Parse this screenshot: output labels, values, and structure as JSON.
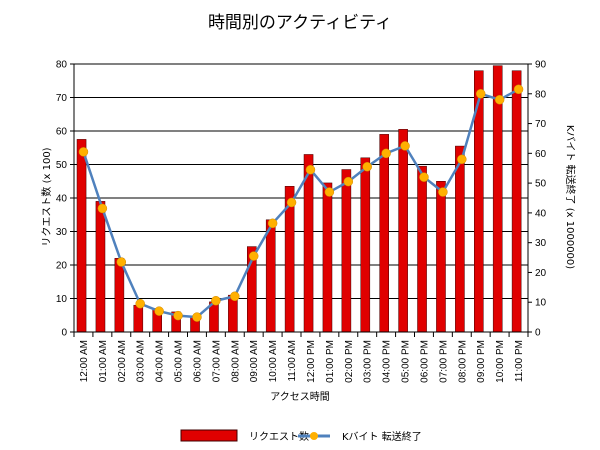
{
  "chart_data": {
    "type": "bar",
    "title": "時間別のアクティビティ",
    "xlabel": "アクセス時間",
    "ylabel": "リクエスト数 (x 100)",
    "y2label": "Kバイト 転送終了 (x 1000000)",
    "ylim": [
      0,
      80
    ],
    "y2lim": [
      0,
      90
    ],
    "yticks": [
      0,
      10,
      20,
      30,
      40,
      50,
      60,
      70,
      80
    ],
    "y2ticks": [
      0,
      10,
      20,
      30,
      40,
      50,
      60,
      70,
      80,
      90
    ],
    "grid": true,
    "legend_position": "bottom",
    "categories": [
      "12:00 AM",
      "01:00 AM",
      "02:00 AM",
      "03:00 AM",
      "04:00 AM",
      "05:00 AM",
      "06:00 AM",
      "07:00 AM",
      "08:00 AM",
      "09:00 AM",
      "10:00 AM",
      "11:00 AM",
      "12:00 PM",
      "01:00 PM",
      "02:00 PM",
      "03:00 PM",
      "04:00 PM",
      "05:00 PM",
      "06:00 PM",
      "07:00 PM",
      "08:00 PM",
      "09:00 PM",
      "10:00 PM",
      "11:00 PM"
    ],
    "series": [
      {
        "name": "リクエスト数",
        "kind": "bar",
        "axis": "left",
        "color": "#e00000",
        "values": [
          57.5,
          39,
          22,
          8,
          7,
          6,
          4.5,
          9,
          11,
          25.5,
          33.5,
          43.5,
          53,
          44.5,
          48.5,
          52,
          59,
          60.5,
          49.5,
          45,
          55.5,
          78,
          79.5,
          78
        ]
      },
      {
        "name": "Kバイト 転送終了",
        "kind": "line",
        "axis": "right",
        "color": "#4f81bd",
        "marker_color": "#ffb000",
        "values": [
          60.5,
          41.5,
          23.5,
          9.5,
          7,
          5.5,
          5,
          10.5,
          12,
          25.5,
          36.5,
          43.5,
          54.5,
          47,
          50.5,
          55.5,
          60,
          62.5,
          52,
          47,
          58,
          80,
          78,
          81.5
        ]
      }
    ]
  }
}
